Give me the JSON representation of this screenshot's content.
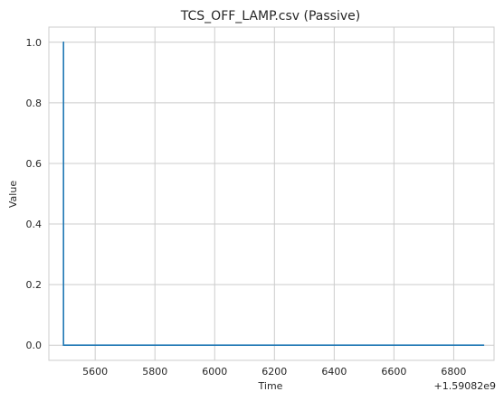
{
  "chart_data": {
    "type": "line",
    "title": "TCS_OFF_LAMP.csv (Passive)",
    "xlabel": "Time",
    "ylabel": "Value",
    "x_offset_label": "+1.59082e9",
    "xlim": [
      5445,
      6935
    ],
    "ylim": [
      -0.05,
      1.05
    ],
    "x_ticks": [
      5600,
      5800,
      6000,
      6200,
      6400,
      6600,
      6800
    ],
    "x_tick_labels": [
      "5600",
      "5800",
      "6000",
      "6200",
      "6400",
      "6600",
      "6800"
    ],
    "y_ticks": [
      0.0,
      0.2,
      0.4,
      0.6,
      0.8,
      1.0
    ],
    "y_tick_labels": [
      "0.0",
      "0.2",
      "0.4",
      "0.6",
      "0.8",
      "1.0"
    ],
    "grid": true,
    "series": [
      {
        "color": "#1f77b4",
        "x": [
          5492,
          5494,
          5494,
          6902
        ],
        "y": [
          1.0,
          1.0,
          0.0,
          0.0
        ]
      }
    ]
  }
}
